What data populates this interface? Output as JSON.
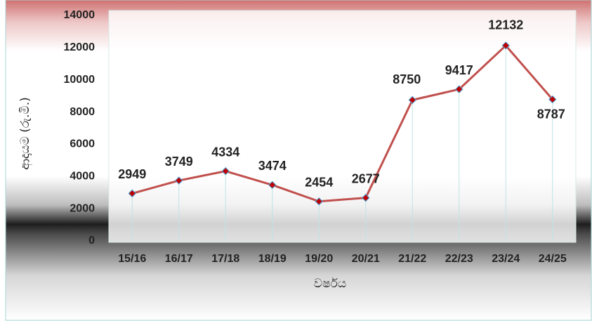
{
  "chart_data": {
    "type": "line",
    "categories": [
      "15/16",
      "16/17",
      "17/18",
      "18/19",
      "19/20",
      "20/21",
      "21/22",
      "22/23",
      "23/24",
      "24/25"
    ],
    "series": [
      {
        "name": "ආදායම",
        "color": "#c0504d",
        "values": [
          2949,
          3749,
          4334,
          3474,
          2454,
          2677,
          8750,
          9417,
          12132,
          8787
        ]
      }
    ],
    "x_label": "වර්ෂය",
    "y_label": "ආදායම (රු.මි.)",
    "ylim": [
      0,
      14000
    ],
    "yticks": [
      0,
      2000,
      4000,
      6000,
      8000,
      10000,
      12000,
      14000
    ]
  }
}
